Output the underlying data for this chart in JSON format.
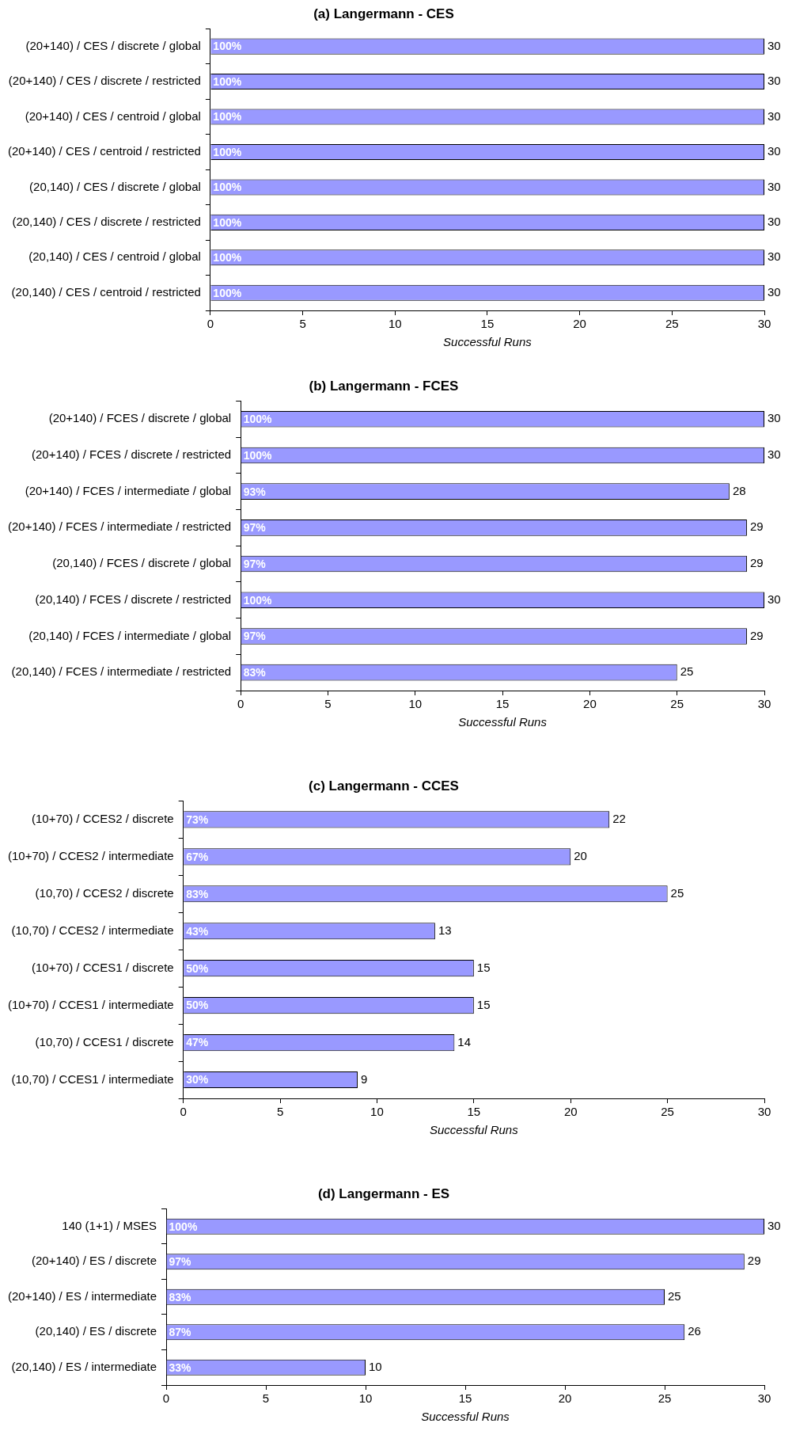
{
  "chart_data": [
    {
      "type": "bar",
      "orientation": "horizontal",
      "title": "(a) Langermann - CES",
      "xlabel": "Successful Runs",
      "categories": [
        "(20+140) / CES / discrete / global",
        "(20+140) / CES / discrete / restricted",
        "(20+140) / CES / centroid / global",
        "(20+140) / CES / centroid / restricted",
        "(20,140) / CES / discrete / global",
        "(20,140) / CES / discrete / restricted",
        "(20,140) / CES / centroid / global",
        "(20,140) / CES / centroid / restricted"
      ],
      "values": [
        30,
        30,
        30,
        30,
        30,
        30,
        30,
        30
      ],
      "annotations": [
        "100%",
        "100%",
        "100%",
        "100%",
        "100%",
        "100%",
        "100%",
        "100%"
      ],
      "color": "#9999ff",
      "xlim": [
        0,
        30
      ],
      "xticks": [
        0,
        5,
        10,
        15,
        20,
        25,
        30
      ],
      "data_labels": true
    },
    {
      "type": "bar",
      "orientation": "horizontal",
      "title": "(b) Langermann - FCES",
      "xlabel": "Successful Runs",
      "categories": [
        "(20+140) / FCES / discrete / global",
        "(20+140) / FCES / discrete / restricted",
        "(20+140) / FCES / intermediate / global",
        "(20+140) / FCES / intermediate / restricted",
        "(20,140) / FCES / discrete / global",
        "(20,140) / FCES / discrete / restricted",
        "(20,140) / FCES / intermediate / global",
        "(20,140) / FCES / intermediate / restricted"
      ],
      "values": [
        30,
        30,
        28,
        29,
        29,
        30,
        29,
        25
      ],
      "annotations": [
        "100%",
        "100%",
        "93%",
        "97%",
        "97%",
        "100%",
        "97%",
        "83%"
      ],
      "color": "#9999ff",
      "xlim": [
        0,
        30
      ],
      "xticks": [
        0,
        5,
        10,
        15,
        20,
        25,
        30
      ],
      "data_labels": true
    },
    {
      "type": "bar",
      "orientation": "horizontal",
      "title": "(c) Langermann - CCES",
      "xlabel": "Successful Runs",
      "categories": [
        "(10+70) / CCES2 / discrete",
        "(10+70) / CCES2 / intermediate",
        "(10,70) / CCES2 / discrete",
        "(10,70) / CCES2 / intermediate",
        "(10+70) / CCES1 / discrete",
        "(10+70) / CCES1 / intermediate",
        "(10,70) / CCES1 / discrete",
        "(10,70) / CCES1 / intermediate"
      ],
      "values": [
        22,
        20,
        25,
        13,
        15,
        15,
        14,
        9
      ],
      "annotations": [
        "73%",
        "67%",
        "83%",
        "43%",
        "50%",
        "50%",
        "47%",
        "30%"
      ],
      "color": "#9999ff",
      "xlim": [
        0,
        30
      ],
      "xticks": [
        0,
        5,
        10,
        15,
        20,
        25,
        30
      ],
      "data_labels": true
    },
    {
      "type": "bar",
      "orientation": "horizontal",
      "title": "(d) Langermann - ES",
      "xlabel": "Successful Runs",
      "categories": [
        "140 (1+1) / MSES",
        "(20+140) / ES / discrete",
        "(20+140) / ES / intermediate",
        "(20,140) / ES / discrete",
        "(20,140) / ES / intermediate"
      ],
      "values": [
        30,
        29,
        25,
        26,
        10
      ],
      "annotations": [
        "100%",
        "97%",
        "83%",
        "87%",
        "33%"
      ],
      "color": "#9999ff",
      "xlim": [
        0,
        30
      ],
      "xticks": [
        0,
        5,
        10,
        15,
        20,
        25,
        30
      ],
      "data_labels": true
    }
  ]
}
